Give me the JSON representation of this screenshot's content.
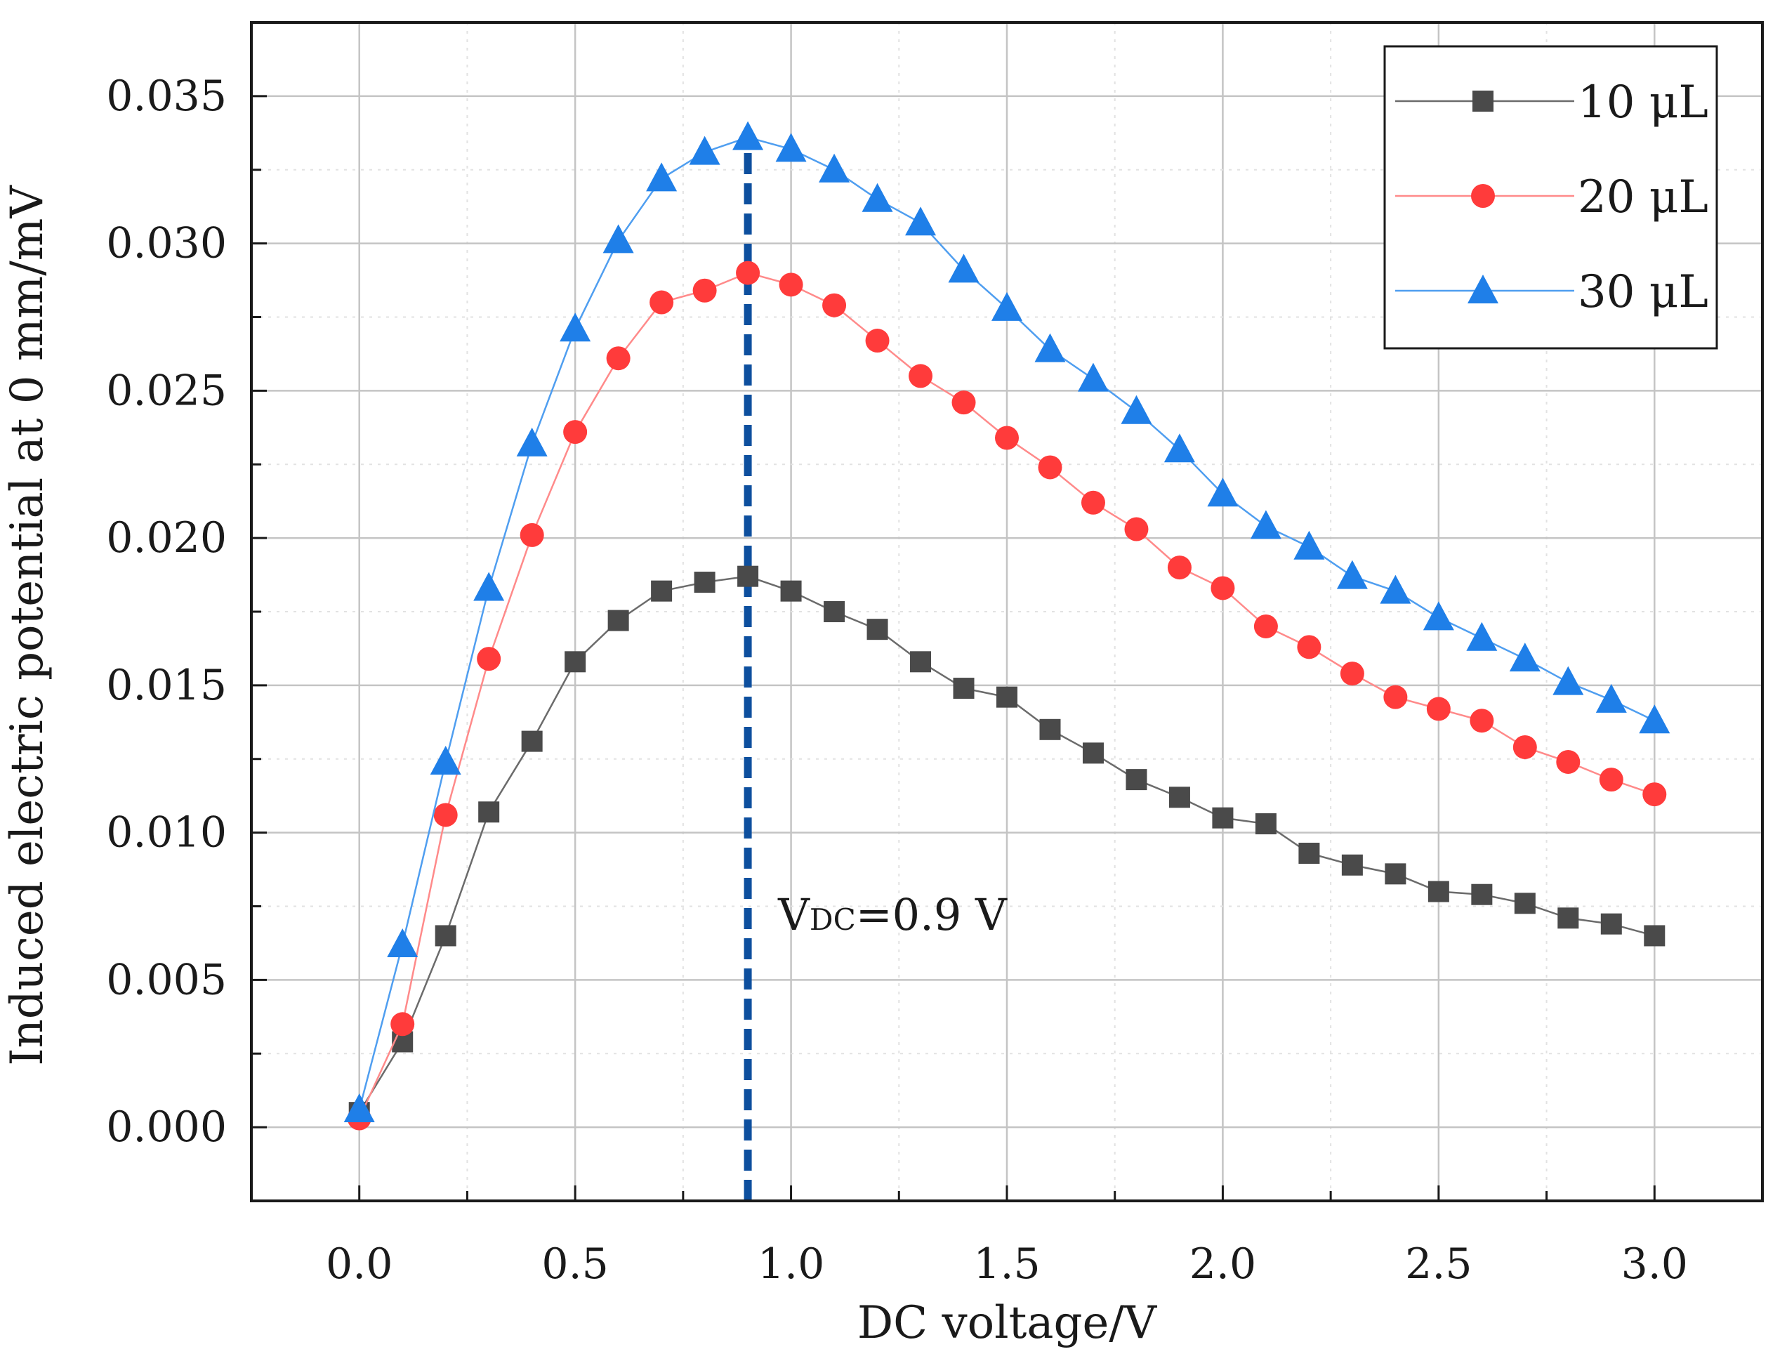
{
  "chart_data": {
    "type": "line",
    "title": "",
    "xlabel": "DC voltage/V",
    "ylabel": "Induced electric potential at 0 mm/mV",
    "xlim": [
      -0.25,
      3.25
    ],
    "ylim": [
      -0.0025,
      0.0375
    ],
    "xticks": [
      0.0,
      0.5,
      1.0,
      1.5,
      2.0,
      2.5,
      3.0
    ],
    "xtick_labels": [
      "0.0",
      "0.5",
      "1.0",
      "1.5",
      "2.0",
      "2.5",
      "3.0"
    ],
    "yticks": [
      0.0,
      0.005,
      0.01,
      0.015,
      0.02,
      0.025,
      0.03,
      0.035
    ],
    "ytick_labels": [
      "0.000",
      "0.005",
      "0.010",
      "0.015",
      "0.020",
      "0.025",
      "0.030",
      "0.035"
    ],
    "grid": true,
    "legend_position": "top-right",
    "x": [
      0.0,
      0.1,
      0.2,
      0.3,
      0.4,
      0.5,
      0.6,
      0.7,
      0.8,
      0.9,
      1.0,
      1.1,
      1.2,
      1.3,
      1.4,
      1.5,
      1.6,
      1.7,
      1.8,
      1.9,
      2.0,
      2.1,
      2.2,
      2.3,
      2.4,
      2.5,
      2.6,
      2.7,
      2.8,
      2.9,
      3.0
    ],
    "series": [
      {
        "name": "10 μL",
        "legend_label": "10  μL",
        "marker": "square",
        "color": "#4a4a4a",
        "line_color": "#6b6b6b",
        "values": [
          0.0005,
          0.0029,
          0.0065,
          0.0107,
          0.0131,
          0.0158,
          0.0172,
          0.0182,
          0.0185,
          0.0187,
          0.0182,
          0.0175,
          0.0169,
          0.0158,
          0.0149,
          0.0146,
          0.0135,
          0.0127,
          0.0118,
          0.0112,
          0.0105,
          0.0103,
          0.0093,
          0.0089,
          0.0086,
          0.008,
          0.0079,
          0.0076,
          0.0071,
          0.0069,
          0.0065
        ]
      },
      {
        "name": "20 μL",
        "legend_label": "20  μL",
        "marker": "circle",
        "color": "#ff3b3b",
        "line_color": "#ff8a8a",
        "values": [
          0.0003,
          0.0035,
          0.0106,
          0.0159,
          0.0201,
          0.0236,
          0.0261,
          0.028,
          0.0284,
          0.029,
          0.0286,
          0.0279,
          0.0267,
          0.0255,
          0.0246,
          0.0234,
          0.0224,
          0.0212,
          0.0203,
          0.019,
          0.0183,
          0.017,
          0.0163,
          0.0154,
          0.0146,
          0.0142,
          0.0138,
          0.0129,
          0.0124,
          0.0118,
          0.0113
        ]
      },
      {
        "name": "30 μL",
        "legend_label": "30  μL",
        "marker": "triangle",
        "color": "#1f7fe8",
        "line_color": "#4f9ef0",
        "values": [
          0.0006,
          0.0062,
          0.0124,
          0.0183,
          0.0232,
          0.0271,
          0.0301,
          0.0322,
          0.0331,
          0.0336,
          0.0332,
          0.0325,
          0.0315,
          0.0307,
          0.0291,
          0.0278,
          0.0264,
          0.0254,
          0.0243,
          0.023,
          0.0215,
          0.0204,
          0.0197,
          0.0187,
          0.0182,
          0.0173,
          0.0166,
          0.0159,
          0.0151,
          0.0145,
          0.0138
        ]
      }
    ],
    "reference_line": {
      "x": 0.9,
      "style": "dashed",
      "color": "#0d4f9e"
    },
    "annotation": {
      "main": "V",
      "subscript": "DC",
      "rest": "=0.9 V",
      "x": 0.97,
      "y": 0.0067
    }
  }
}
